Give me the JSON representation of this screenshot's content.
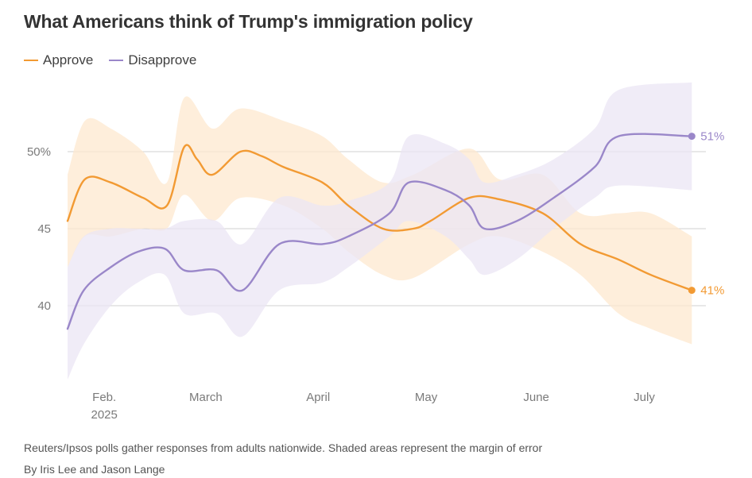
{
  "chart_data": {
    "type": "line",
    "title": "What Americans think of Trump's immigration policy",
    "xlabel": "",
    "ylabel": "",
    "ylim": [
      35,
      55
    ],
    "x_range": [
      0,
      5.8
    ],
    "y_ticks": [
      {
        "value": 50,
        "label": "50%"
      },
      {
        "value": 45,
        "label": "45"
      },
      {
        "value": 40,
        "label": "40"
      }
    ],
    "x_ticks": [
      {
        "value": 0.34,
        "label": "Feb.",
        "sublabel": "2025"
      },
      {
        "value": 1.28,
        "label": "March"
      },
      {
        "value": 2.32,
        "label": "April"
      },
      {
        "value": 3.32,
        "label": "May"
      },
      {
        "value": 4.34,
        "label": "June"
      },
      {
        "value": 5.34,
        "label": "July"
      }
    ],
    "series": [
      {
        "name": "Approve",
        "color": "#f29a33",
        "band_color": "#fde8cf",
        "end_label": "41%",
        "points": [
          [
            0.0,
            45.5
          ],
          [
            0.16,
            48.2
          ],
          [
            0.4,
            48.0
          ],
          [
            0.7,
            47.0
          ],
          [
            0.92,
            46.5
          ],
          [
            1.08,
            50.3
          ],
          [
            1.2,
            49.5
          ],
          [
            1.34,
            48.5
          ],
          [
            1.6,
            50.0
          ],
          [
            1.8,
            49.7
          ],
          [
            2.0,
            49.0
          ],
          [
            2.36,
            48.0
          ],
          [
            2.6,
            46.5
          ],
          [
            2.92,
            45.0
          ],
          [
            3.2,
            45.0
          ],
          [
            3.36,
            45.5
          ],
          [
            3.72,
            47.0
          ],
          [
            4.0,
            46.9
          ],
          [
            4.4,
            46.0
          ],
          [
            4.75,
            44.0
          ],
          [
            5.1,
            43.0
          ],
          [
            5.4,
            42.0
          ],
          [
            5.78,
            41.0
          ]
        ],
        "upper": [
          [
            0.0,
            48.5
          ],
          [
            0.16,
            52.0
          ],
          [
            0.4,
            51.5
          ],
          [
            0.7,
            50.0
          ],
          [
            0.92,
            48.0
          ],
          [
            1.08,
            53.5
          ],
          [
            1.34,
            51.5
          ],
          [
            1.6,
            52.8
          ],
          [
            2.0,
            52.0
          ],
          [
            2.36,
            51.0
          ],
          [
            2.6,
            49.5
          ],
          [
            2.92,
            48.0
          ],
          [
            3.2,
            48.5
          ],
          [
            3.72,
            50.2
          ],
          [
            4.0,
            48.2
          ],
          [
            4.4,
            48.5
          ],
          [
            4.75,
            46.0
          ],
          [
            5.1,
            46.0
          ],
          [
            5.4,
            46.0
          ],
          [
            5.78,
            44.5
          ]
        ],
        "lower": [
          [
            0.0,
            42.5
          ],
          [
            0.16,
            44.5
          ],
          [
            0.4,
            44.5
          ],
          [
            0.7,
            45.0
          ],
          [
            0.92,
            45.0
          ],
          [
            1.08,
            47.2
          ],
          [
            1.34,
            45.5
          ],
          [
            1.6,
            47.0
          ],
          [
            2.0,
            46.5
          ],
          [
            2.36,
            45.0
          ],
          [
            2.6,
            43.5
          ],
          [
            2.92,
            42.0
          ],
          [
            3.2,
            41.8
          ],
          [
            3.72,
            44.0
          ],
          [
            4.0,
            44.5
          ],
          [
            4.4,
            43.5
          ],
          [
            4.75,
            42.0
          ],
          [
            5.1,
            39.5
          ],
          [
            5.4,
            38.5
          ],
          [
            5.78,
            37.5
          ]
        ]
      },
      {
        "name": "Disapprove",
        "color": "#9a87c9",
        "band_color": "#ebe6f4",
        "end_label": "51%",
        "points": [
          [
            0.0,
            38.5
          ],
          [
            0.15,
            41.0
          ],
          [
            0.4,
            42.5
          ],
          [
            0.65,
            43.5
          ],
          [
            0.9,
            43.7
          ],
          [
            1.08,
            42.3
          ],
          [
            1.38,
            42.3
          ],
          [
            1.62,
            41.0
          ],
          [
            1.96,
            44.0
          ],
          [
            2.36,
            44.0
          ],
          [
            2.6,
            44.5
          ],
          [
            2.98,
            46.0
          ],
          [
            3.16,
            48.0
          ],
          [
            3.5,
            47.5
          ],
          [
            3.72,
            46.5
          ],
          [
            3.86,
            45.0
          ],
          [
            4.16,
            45.5
          ],
          [
            4.5,
            47.0
          ],
          [
            4.88,
            49.0
          ],
          [
            5.1,
            51.0
          ],
          [
            5.78,
            51.0
          ]
        ],
        "upper": [
          [
            0.0,
            42.5
          ],
          [
            0.15,
            44.5
          ],
          [
            0.4,
            45.0
          ],
          [
            0.65,
            45.0
          ],
          [
            0.9,
            45.0
          ],
          [
            1.08,
            45.5
          ],
          [
            1.38,
            45.5
          ],
          [
            1.62,
            44.0
          ],
          [
            1.96,
            47.0
          ],
          [
            2.36,
            46.5
          ],
          [
            2.6,
            46.8
          ],
          [
            2.98,
            48.0
          ],
          [
            3.16,
            51.0
          ],
          [
            3.5,
            50.5
          ],
          [
            3.72,
            49.5
          ],
          [
            3.86,
            48.0
          ],
          [
            4.16,
            48.5
          ],
          [
            4.5,
            49.5
          ],
          [
            4.88,
            51.5
          ],
          [
            5.1,
            54.0
          ],
          [
            5.78,
            54.5
          ]
        ],
        "lower": [
          [
            0.0,
            35.2
          ],
          [
            0.15,
            37.5
          ],
          [
            0.4,
            40.0
          ],
          [
            0.65,
            41.5
          ],
          [
            0.9,
            42.0
          ],
          [
            1.08,
            39.5
          ],
          [
            1.38,
            39.5
          ],
          [
            1.62,
            38.0
          ],
          [
            1.96,
            41.0
          ],
          [
            2.36,
            41.5
          ],
          [
            2.6,
            42.5
          ],
          [
            2.98,
            44.5
          ],
          [
            3.16,
            45.5
          ],
          [
            3.5,
            44.5
          ],
          [
            3.72,
            43.0
          ],
          [
            3.86,
            42.0
          ],
          [
            4.16,
            43.0
          ],
          [
            4.5,
            45.0
          ],
          [
            4.88,
            47.0
          ],
          [
            5.1,
            47.8
          ],
          [
            5.78,
            47.5
          ]
        ]
      }
    ]
  },
  "legend": {
    "approve_label": "Approve",
    "disapprove_label": "Disapprove"
  },
  "footer": {
    "note": "Reuters/Ipsos polls gather responses from adults nationwide. Shaded areas represent the margin of error",
    "byline": "By Iris Lee and Jason Lange"
  },
  "colors": {
    "approve": "#f29a33",
    "disapprove": "#9a87c9",
    "gridline": "#d0d0d0",
    "title": "#333333"
  }
}
